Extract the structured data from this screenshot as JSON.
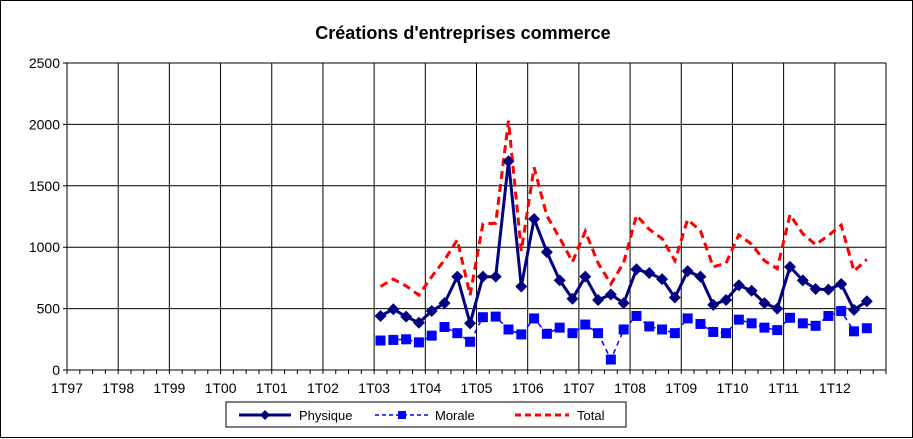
{
  "chart_data": {
    "type": "line",
    "title": "Créations d'entreprises commerce",
    "xlabel": "",
    "ylabel": "",
    "ylim": [
      0,
      2500
    ],
    "yticks": [
      0,
      500,
      1000,
      1500,
      2000,
      2500
    ],
    "xtick_labels": [
      "1T97",
      "1T98",
      "1T99",
      "1T00",
      "1T01",
      "1T02",
      "1T03",
      "1T04",
      "1T05",
      "1T06",
      "1T07",
      "1T08",
      "1T09",
      "1T10",
      "1T11",
      "1T12"
    ],
    "x_period_count": 64,
    "grid": "vertical lines per year, horizontal lines per tick",
    "legend_position": "bottom",
    "series": [
      {
        "name": "Physique",
        "color": "#000080",
        "line_style": "solid",
        "marker": "diamond",
        "start_period_index": 24,
        "values": [
          440,
          495,
          435,
          385,
          480,
          545,
          760,
          380,
          760,
          760,
          1700,
          680,
          1230,
          960,
          730,
          580,
          760,
          570,
          615,
          545,
          820,
          790,
          740,
          590,
          805,
          760,
          530,
          570,
          690,
          645,
          545,
          500,
          840,
          730,
          660,
          655,
          700,
          490,
          560
        ]
      },
      {
        "name": "Morale",
        "color": "#0000FF",
        "line_style": "dashed",
        "marker": "square",
        "start_period_index": 24,
        "values": [
          240,
          245,
          250,
          225,
          280,
          350,
          300,
          230,
          430,
          435,
          330,
          290,
          420,
          295,
          345,
          300,
          370,
          300,
          85,
          330,
          440,
          355,
          330,
          300,
          420,
          375,
          310,
          300,
          410,
          380,
          345,
          325,
          425,
          380,
          360,
          440,
          480,
          315,
          340
        ]
      },
      {
        "name": "Total",
        "color": "#FF0000",
        "line_style": "dashed",
        "marker": "none",
        "start_period_index": 24,
        "values": [
          680,
          740,
          685,
          610,
          760,
          895,
          1060,
          610,
          1190,
          1195,
          2030,
          970,
          1650,
          1255,
          1075,
          880,
          1130,
          870,
          700,
          875,
          1260,
          1145,
          1070,
          890,
          1225,
          1135,
          840,
          870,
          1100,
          1025,
          890,
          825,
          1265,
          1110,
          1020,
          1095,
          1180,
          805,
          900
        ]
      }
    ]
  }
}
